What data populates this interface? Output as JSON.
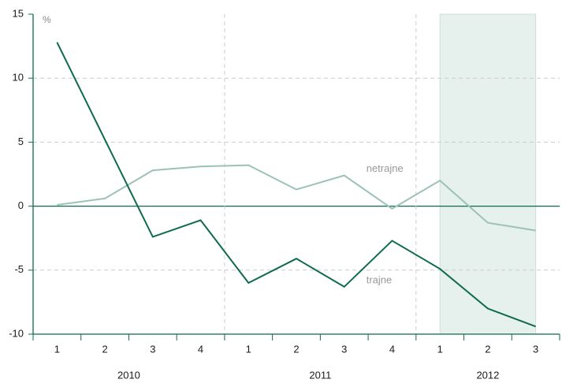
{
  "chart_data": {
    "type": "line",
    "ylabel": "%",
    "categories": [
      "1",
      "2",
      "3",
      "4",
      "1",
      "2",
      "3",
      "4",
      "1",
      "2",
      "3"
    ],
    "year_labels": [
      "2010",
      "2011",
      "2012"
    ],
    "shaded": "2012",
    "series": [
      {
        "name": "netrajne",
        "color": "#9cc3b2",
        "values": [
          0.1,
          0.6,
          2.8,
          3.1,
          3.2,
          1.3,
          2.4,
          -0.2,
          2.0,
          -1.3,
          -1.9
        ]
      },
      {
        "name": "trajne",
        "color": "#0e6b4a",
        "values": [
          12.8,
          5.2,
          -2.4,
          -1.1,
          -6.0,
          -4.1,
          -6.3,
          -2.7,
          -4.9,
          -8.0,
          -9.4
        ]
      }
    ],
    "ylim": [
      -10,
      15
    ],
    "yticks": [
      -10,
      -5,
      0,
      5,
      10,
      15
    ],
    "grid": true
  }
}
